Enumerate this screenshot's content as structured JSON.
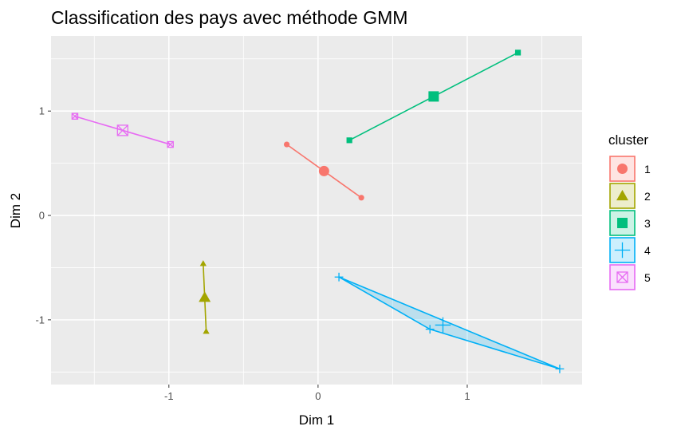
{
  "chart_data": {
    "type": "scatter",
    "title": "Classification des pays avec méthode GMM",
    "xlabel": "Dim 1",
    "ylabel": "Dim 2",
    "xlim": [
      -1.79,
      1.77
    ],
    "ylim": [
      -1.62,
      1.72
    ],
    "x_ticks": [
      -1,
      0,
      1
    ],
    "x_tick_labels": [
      "-1",
      "0",
      "1"
    ],
    "y_ticks": [
      -1,
      0,
      1
    ],
    "y_tick_labels": [
      "-1",
      "0",
      "1"
    ],
    "grid": true,
    "legend_title": "cluster",
    "legend_position": "right",
    "series": [
      {
        "name": "1",
        "color": "#F8766D",
        "shape": "circle",
        "points": [
          [
            -0.21,
            0.68
          ],
          [
            0.29,
            0.17
          ]
        ],
        "center": [
          0.04,
          0.425
        ],
        "hull": "segment"
      },
      {
        "name": "2",
        "color": "#A3A500",
        "shape": "triangle",
        "points": [
          [
            -0.77,
            -0.46
          ],
          [
            -0.75,
            -1.11
          ]
        ],
        "center": [
          -0.76,
          -0.785
        ],
        "hull": "segment"
      },
      {
        "name": "3",
        "color": "#00BF7D",
        "shape": "square",
        "points": [
          [
            0.21,
            0.72
          ],
          [
            1.34,
            1.56
          ]
        ],
        "center": [
          0.775,
          1.14
        ],
        "hull": "segment"
      },
      {
        "name": "4",
        "color": "#00B0F6",
        "shape": "plus",
        "points": [
          [
            0.14,
            -0.59
          ],
          [
            0.75,
            -1.09
          ],
          [
            1.62,
            -1.47
          ]
        ],
        "center": [
          0.837,
          -1.05
        ],
        "hull": "polygon"
      },
      {
        "name": "5",
        "color": "#E76BF3",
        "shape": "boxx",
        "points": [
          [
            -1.63,
            0.95
          ],
          [
            -0.99,
            0.68
          ]
        ],
        "center": [
          -1.31,
          0.815
        ],
        "hull": "segment"
      }
    ]
  }
}
